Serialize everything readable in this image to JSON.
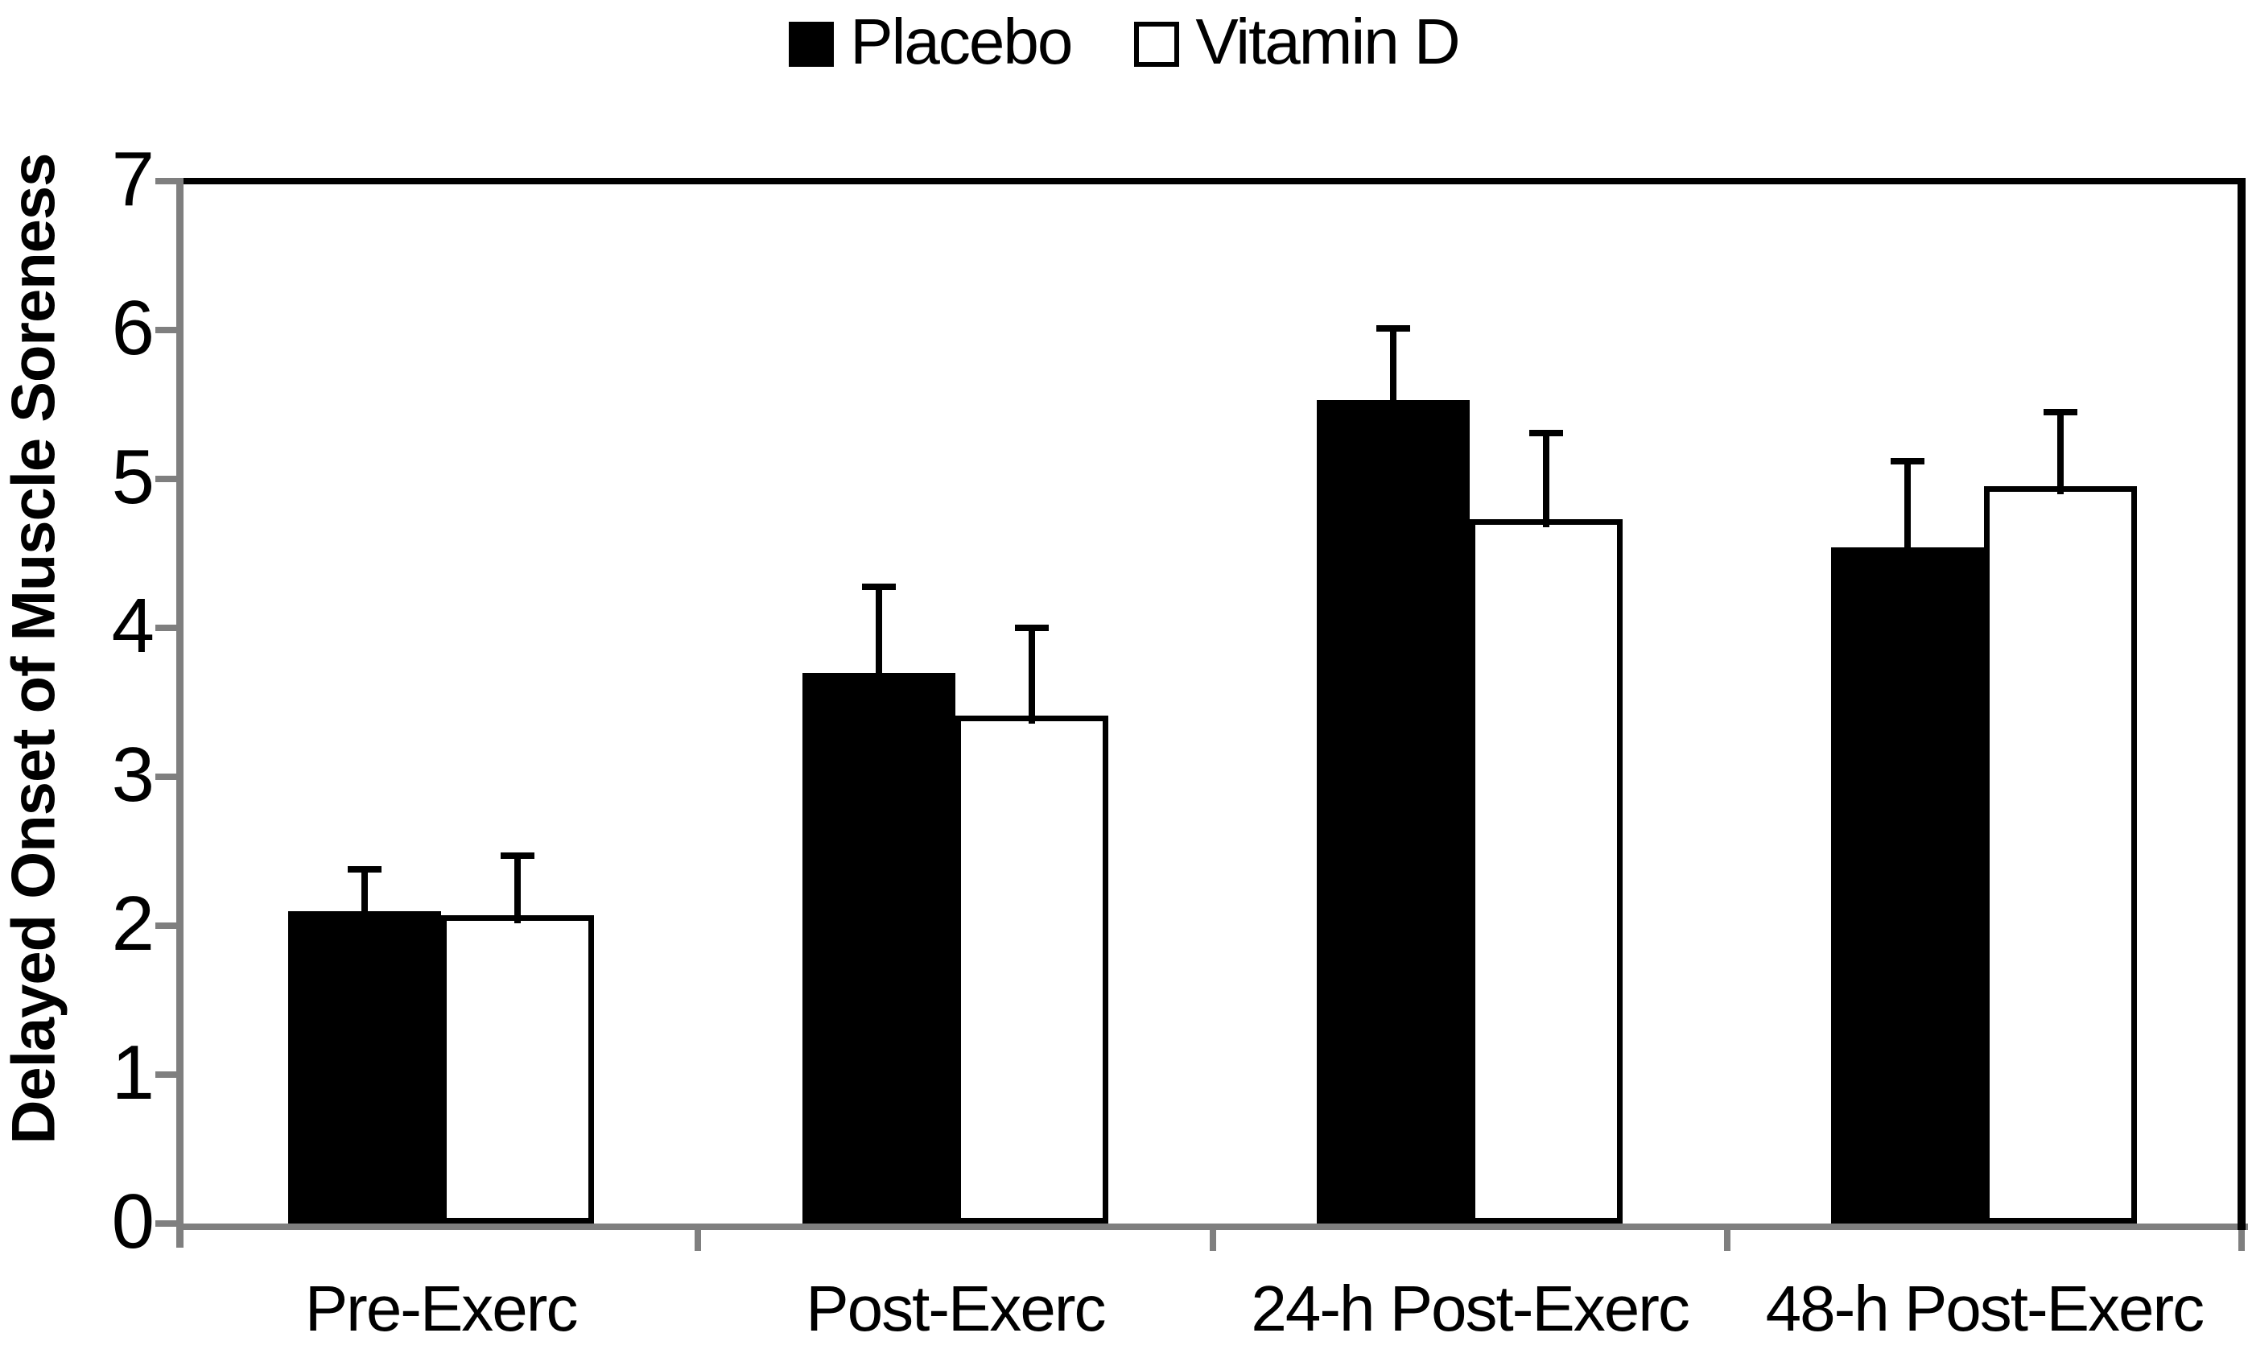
{
  "chart_data": {
    "type": "bar",
    "title": "",
    "ylabel": "Delayed Onset of Muscle Soreness",
    "xlabel": "",
    "ylim": [
      0,
      7
    ],
    "yticks": [
      0,
      1,
      2,
      3,
      4,
      5,
      6,
      7
    ],
    "categories": [
      "Pre-Exerc",
      "Post-Exerc",
      "24-h Post-Exerc",
      "48-h Post-Exerc"
    ],
    "series": [
      {
        "name": "Placebo",
        "fill": "#000000",
        "border": "#000000",
        "values": [
          2.1,
          3.7,
          5.53,
          4.54
        ],
        "errors_plus": [
          0.3,
          0.6,
          0.5,
          0.6
        ]
      },
      {
        "name": "Vitamin D",
        "fill": "#ffffff",
        "border": "#000000",
        "values": [
          2.07,
          3.41,
          4.73,
          4.95
        ],
        "errors_plus": [
          0.42,
          0.61,
          0.6,
          0.52
        ]
      }
    ],
    "error_bars": "upper-only black T caps",
    "legend_position": "top-center",
    "grid": false,
    "colors": {
      "axis_gray": "#7f7f7f",
      "frame_black": "#000000",
      "bar_black": "#000000",
      "bar_white": "#ffffff",
      "background": "#ffffff"
    }
  }
}
